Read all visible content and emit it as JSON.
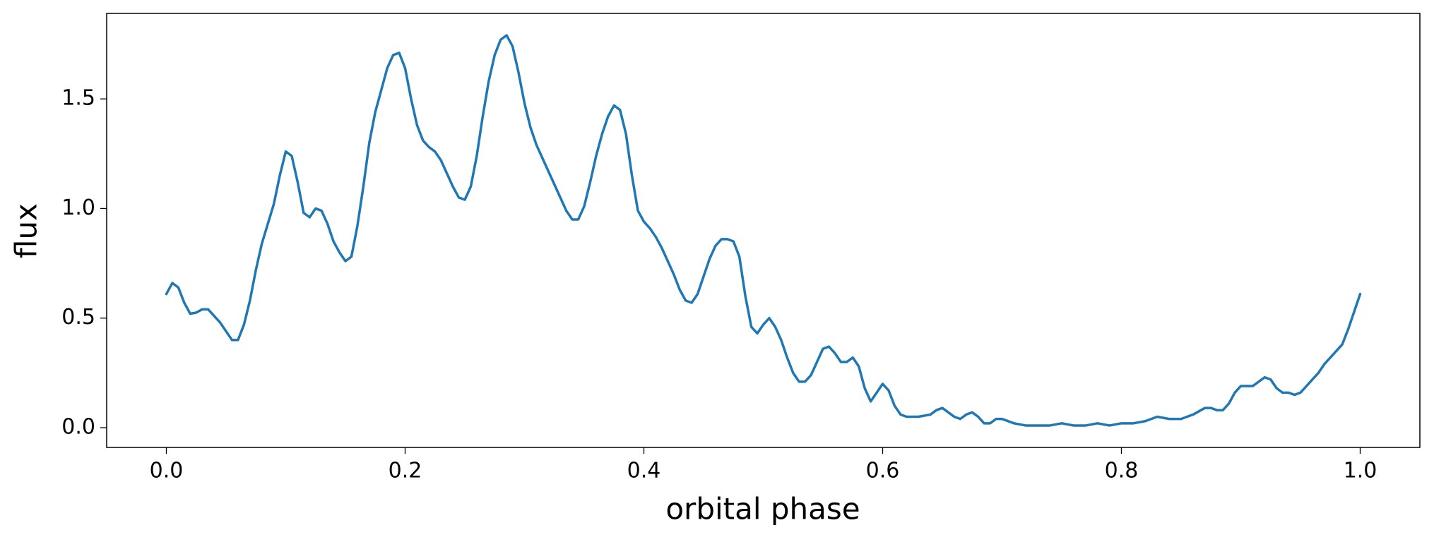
{
  "chart_data": {
    "type": "line",
    "xlabel": "orbital phase",
    "ylabel": "flux",
    "x": [
      0,
      0.005,
      0.01,
      0.015,
      0.02,
      0.025,
      0.03,
      0.035,
      0.04,
      0.045,
      0.05,
      0.055,
      0.06,
      0.065,
      0.07,
      0.075,
      0.08,
      0.085,
      0.09,
      0.095,
      0.1,
      0.105,
      0.11,
      0.115,
      0.12,
      0.125,
      0.13,
      0.135,
      0.14,
      0.145,
      0.15,
      0.155,
      0.16,
      0.165,
      0.17,
      0.175,
      0.18,
      0.185,
      0.19,
      0.195,
      0.2,
      0.205,
      0.21,
      0.215,
      0.22,
      0.225,
      0.23,
      0.235,
      0.24,
      0.245,
      0.25,
      0.255,
      0.26,
      0.265,
      0.27,
      0.275,
      0.28,
      0.285,
      0.29,
      0.295,
      0.3,
      0.305,
      0.31,
      0.315,
      0.32,
      0.325,
      0.33,
      0.335,
      0.34,
      0.345,
      0.35,
      0.355,
      0.36,
      0.365,
      0.37,
      0.375,
      0.38,
      0.385,
      0.39,
      0.395,
      0.4,
      0.405,
      0.41,
      0.415,
      0.42,
      0.425,
      0.43,
      0.435,
      0.44,
      0.445,
      0.45,
      0.455,
      0.46,
      0.465,
      0.47,
      0.475,
      0.48,
      0.485,
      0.49,
      0.495,
      0.5,
      0.505,
      0.51,
      0.515,
      0.52,
      0.525,
      0.53,
      0.535,
      0.54,
      0.545,
      0.55,
      0.555,
      0.56,
      0.565,
      0.57,
      0.575,
      0.58,
      0.585,
      0.59,
      0.595,
      0.6,
      0.605,
      0.61,
      0.615,
      0.62,
      0.63,
      0.64,
      0.645,
      0.65,
      0.655,
      0.66,
      0.665,
      0.67,
      0.675,
      0.68,
      0.685,
      0.69,
      0.695,
      0.7,
      0.71,
      0.72,
      0.73,
      0.74,
      0.75,
      0.76,
      0.77,
      0.78,
      0.79,
      0.8,
      0.81,
      0.82,
      0.83,
      0.84,
      0.85,
      0.86,
      0.87,
      0.875,
      0.88,
      0.885,
      0.89,
      0.895,
      0.9,
      0.905,
      0.91,
      0.915,
      0.92,
      0.925,
      0.93,
      0.935,
      0.94,
      0.945,
      0.95,
      0.955,
      0.96,
      0.965,
      0.97,
      0.975,
      0.98,
      0.985,
      0.99,
      0.995,
      1.0
    ],
    "series": [
      {
        "color": "#1f77b4",
        "values": [
          0.61,
          0.66,
          0.64,
          0.57,
          0.52,
          0.525,
          0.54,
          0.54,
          0.51,
          0.48,
          0.44,
          0.4,
          0.4,
          0.47,
          0.58,
          0.72,
          0.84,
          0.93,
          1.02,
          1.15,
          1.26,
          1.24,
          1.12,
          0.98,
          0.96,
          1.0,
          0.99,
          0.93,
          0.85,
          0.8,
          0.76,
          0.78,
          0.92,
          1.1,
          1.3,
          1.44,
          1.54,
          1.64,
          1.7,
          1.71,
          1.64,
          1.5,
          1.38,
          1.31,
          1.28,
          1.26,
          1.22,
          1.16,
          1.1,
          1.05,
          1.04,
          1.1,
          1.24,
          1.42,
          1.58,
          1.7,
          1.77,
          1.79,
          1.74,
          1.62,
          1.48,
          1.37,
          1.29,
          1.23,
          1.17,
          1.11,
          1.05,
          0.99,
          0.95,
          0.95,
          1.01,
          1.12,
          1.24,
          1.34,
          1.42,
          1.47,
          1.45,
          1.34,
          1.15,
          0.99,
          0.94,
          0.91,
          0.87,
          0.82,
          0.76,
          0.7,
          0.63,
          0.58,
          0.57,
          0.61,
          0.69,
          0.77,
          0.83,
          0.86,
          0.86,
          0.85,
          0.78,
          0.6,
          0.46,
          0.43,
          0.47,
          0.5,
          0.46,
          0.4,
          0.32,
          0.25,
          0.21,
          0.21,
          0.24,
          0.3,
          0.36,
          0.37,
          0.34,
          0.3,
          0.3,
          0.32,
          0.28,
          0.18,
          0.12,
          0.16,
          0.2,
          0.17,
          0.1,
          0.06,
          0.05,
          0.05,
          0.06,
          0.08,
          0.09,
          0.07,
          0.05,
          0.04,
          0.06,
          0.07,
          0.05,
          0.02,
          0.02,
          0.04,
          0.04,
          0.02,
          0.01,
          0.01,
          0.01,
          0.02,
          0.01,
          0.01,
          0.02,
          0.01,
          0.02,
          0.02,
          0.03,
          0.05,
          0.04,
          0.04,
          0.06,
          0.09,
          0.09,
          0.08,
          0.08,
          0.11,
          0.16,
          0.19,
          0.19,
          0.19,
          0.21,
          0.23,
          0.22,
          0.18,
          0.16,
          0.16,
          0.15,
          0.16,
          0.19,
          0.22,
          0.25,
          0.29,
          0.32,
          0.35,
          0.38,
          0.45,
          0.53,
          0.61
        ]
      }
    ],
    "xlim": [
      -0.05,
      1.05
    ],
    "xticks": [
      {
        "value": 0,
        "label": "0.0"
      },
      0.2,
      0.4,
      0.6,
      0.8,
      {
        "value": 1,
        "label": "1.0"
      }
    ],
    "ylim": [
      -0.09,
      1.89
    ],
    "yticks": [
      {
        "value": 0,
        "label": "0.0"
      },
      0.5,
      {
        "value": 1,
        "label": "1.0"
      },
      1.5
    ],
    "grid": false
  }
}
